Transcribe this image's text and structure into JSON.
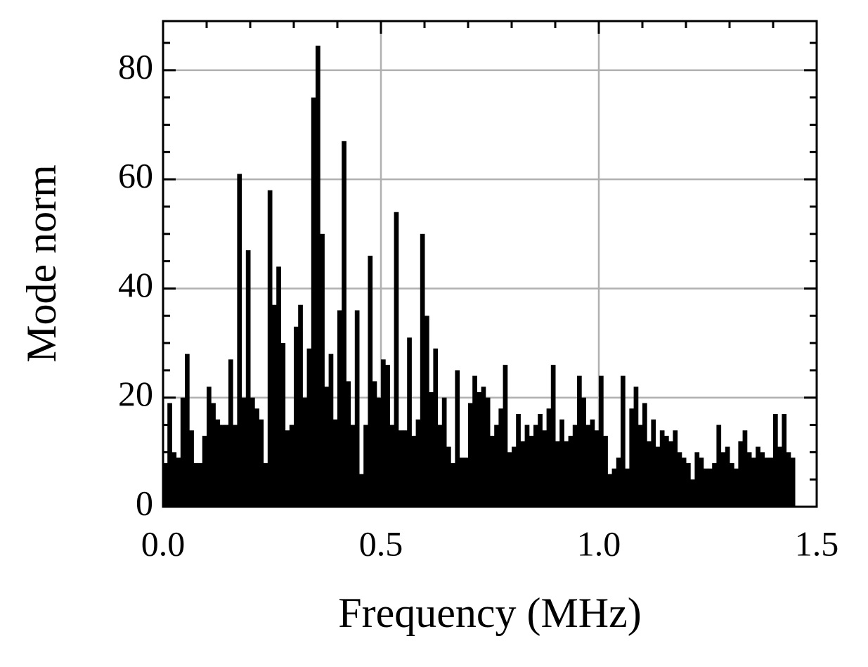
{
  "chart_data": {
    "type": "bar",
    "xlabel": "Frequency (MHz)",
    "ylabel": "Mode norm",
    "color": "#000000",
    "grid": true,
    "x": [
      0.0,
      0.01,
      0.02,
      0.03,
      0.04,
      0.05,
      0.06,
      0.07,
      0.08,
      0.09,
      0.1,
      0.11,
      0.12,
      0.13,
      0.14,
      0.15,
      0.16,
      0.17,
      0.18,
      0.19,
      0.2,
      0.21,
      0.22,
      0.23,
      0.24,
      0.25,
      0.26,
      0.27,
      0.28,
      0.29,
      0.3,
      0.31,
      0.32,
      0.33,
      0.34,
      0.35,
      0.36,
      0.37,
      0.38,
      0.39,
      0.4,
      0.41,
      0.42,
      0.43,
      0.44,
      0.45,
      0.46,
      0.47,
      0.48,
      0.49,
      0.5,
      0.51,
      0.52,
      0.53,
      0.54,
      0.55,
      0.56,
      0.57,
      0.58,
      0.59,
      0.6,
      0.61,
      0.62,
      0.63,
      0.64,
      0.65,
      0.66,
      0.67,
      0.68,
      0.69,
      0.7,
      0.71,
      0.72,
      0.73,
      0.74,
      0.75,
      0.76,
      0.77,
      0.78,
      0.79,
      0.8,
      0.81,
      0.82,
      0.83,
      0.84,
      0.85,
      0.86,
      0.87,
      0.88,
      0.89,
      0.9,
      0.91,
      0.92,
      0.93,
      0.94,
      0.95,
      0.96,
      0.97,
      0.98,
      0.99,
      1.0,
      1.01,
      1.02,
      1.03,
      1.04,
      1.05,
      1.06,
      1.07,
      1.08,
      1.09,
      1.1,
      1.11,
      1.12,
      1.13,
      1.14,
      1.15,
      1.16,
      1.17,
      1.18,
      1.19,
      1.2,
      1.21,
      1.22,
      1.23,
      1.24,
      1.25,
      1.26,
      1.27,
      1.28,
      1.29,
      1.3,
      1.31,
      1.32,
      1.33,
      1.34,
      1.35,
      1.36,
      1.37,
      1.38,
      1.39,
      1.4,
      1.41,
      1.42,
      1.43,
      1.44
    ],
    "values": [
      8,
      19,
      10,
      9,
      20,
      28,
      14,
      8,
      8,
      13,
      22,
      19,
      16,
      15,
      15,
      27,
      15,
      61,
      20,
      47,
      20,
      18,
      16,
      8,
      58,
      37,
      44,
      30,
      14,
      15,
      33,
      37,
      20,
      29,
      75,
      84.5,
      50,
      22,
      28,
      16,
      36,
      67,
      23,
      15,
      36,
      6,
      15,
      46,
      23,
      20,
      27,
      26,
      15,
      54,
      14,
      14,
      31,
      13,
      16,
      50,
      35,
      21,
      29,
      15,
      20,
      11,
      8,
      25,
      9,
      9,
      19,
      24,
      21,
      22,
      20,
      13,
      15,
      18,
      26,
      10,
      11,
      17,
      12,
      15,
      13,
      15,
      17,
      14,
      18,
      26,
      12,
      16,
      12,
      13,
      15,
      24,
      20,
      15,
      16,
      14,
      24,
      13,
      6,
      7,
      9,
      24,
      7,
      18,
      22,
      15,
      19,
      12,
      16,
      11,
      14,
      13,
      12,
      14,
      10,
      9,
      8,
      5,
      10,
      9,
      7,
      7,
      8,
      15,
      10,
      11,
      8,
      7,
      12,
      14,
      10,
      9,
      11,
      10,
      9,
      9,
      17,
      11,
      17,
      10,
      9
    ],
    "xlim": [
      0,
      1.5
    ],
    "ylim": [
      0,
      89
    ],
    "xticks": [
      {
        "value": 0,
        "label": "0.0"
      },
      0.5,
      {
        "value": 1,
        "label": "1.0"
      },
      1.5
    ],
    "yticks": [
      0,
      20,
      40,
      60,
      80
    ],
    "xminorticks": [
      0.1,
      0.2,
      0.3,
      0.4,
      0.6,
      0.7,
      0.8,
      0.9,
      1.1,
      1.2,
      1.3,
      1.4
    ],
    "yminorticks": [
      5,
      10,
      15,
      25,
      30,
      35,
      45,
      50,
      55,
      65,
      70,
      75,
      85
    ]
  }
}
